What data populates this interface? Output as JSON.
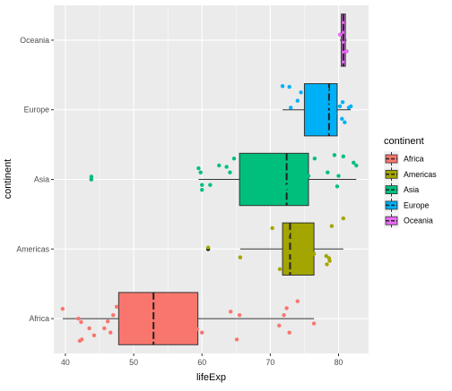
{
  "chart_data": {
    "type": "boxplot",
    "title": "",
    "xlabel": "lifeExp",
    "ylabel": "continent",
    "xlim": [
      38.3,
      84.4
    ],
    "xticks": [
      40,
      50,
      60,
      70,
      80
    ],
    "categories": [
      "Africa",
      "Americas",
      "Asia",
      "Europe",
      "Oceania"
    ],
    "grid": true,
    "legend": {
      "title": "continent",
      "position": "right",
      "entries": [
        "Africa",
        "Americas",
        "Asia",
        "Europe",
        "Oceania"
      ]
    },
    "colors": {
      "Africa": "#F8766D",
      "Americas": "#A3A500",
      "Asia": "#00BF7D",
      "Europe": "#00B0F6",
      "Oceania": "#E76BF3",
      "panel": "#EBEBEB",
      "grid": "#FFFFFF",
      "outlier": "#000000"
    },
    "series": [
      {
        "name": "Africa",
        "box": {
          "whisker_low": 39.6,
          "q1": 47.8,
          "median": 52.9,
          "q3": 59.4,
          "whisker_high": 76.4
        },
        "outliers": [],
        "points": [
          [
            39.6,
            0.14
          ],
          [
            41.9,
            0.0
          ],
          [
            42.3,
            -0.05
          ],
          [
            42.4,
            -0.3
          ],
          [
            42.1,
            -0.32
          ],
          [
            43.5,
            -0.14
          ],
          [
            44.2,
            -0.24
          ],
          [
            46.2,
            -0.04
          ],
          [
            45.7,
            -0.14
          ],
          [
            46.6,
            -0.2
          ],
          [
            47.0,
            0.05
          ],
          [
            47.5,
            0.17
          ],
          [
            48.2,
            0.28
          ],
          [
            49.5,
            0.13
          ],
          [
            50.8,
            -0.33
          ],
          [
            52.3,
            0.22
          ],
          [
            54.1,
            -0.27
          ],
          [
            56.0,
            0.05
          ],
          [
            58.4,
            0.1
          ],
          [
            59.3,
            -0.15
          ],
          [
            60.0,
            -0.2
          ],
          [
            64.2,
            0.1
          ],
          [
            65.1,
            -0.3
          ],
          [
            65.5,
            0.05
          ],
          [
            71.3,
            -0.1
          ],
          [
            72.0,
            0.05
          ],
          [
            72.4,
            0.15
          ],
          [
            72.8,
            -0.2
          ],
          [
            74.0,
            0.25
          ],
          [
            76.4,
            -0.07
          ]
        ]
      },
      {
        "name": "Americas",
        "box": {
          "whisker_low": 65.6,
          "q1": 71.8,
          "median": 72.9,
          "q3": 76.4,
          "whisker_high": 80.7
        },
        "outliers": [
          60.9
        ],
        "points": [
          [
            60.9,
            0.02
          ],
          [
            65.6,
            -0.12
          ],
          [
            70.3,
            0.3
          ],
          [
            71.4,
            -0.29
          ],
          [
            72.4,
            -0.26
          ],
          [
            72.6,
            0.22
          ],
          [
            72.9,
            0.12
          ],
          [
            73.0,
            -0.05
          ],
          [
            73.3,
            0.28
          ],
          [
            73.7,
            -0.16
          ],
          [
            75.3,
            0.17
          ],
          [
            75.5,
            -0.28
          ],
          [
            75.6,
            0.11
          ],
          [
            76.4,
            -0.07
          ],
          [
            78.2,
            -0.1
          ],
          [
            78.3,
            -0.22
          ],
          [
            78.6,
            -0.13
          ],
          [
            78.7,
            -0.17
          ],
          [
            79.0,
            0.33
          ],
          [
            80.7,
            0.44
          ]
        ]
      },
      {
        "name": "Asia",
        "box": {
          "whisker_low": 59.5,
          "q1": 65.5,
          "median": 72.4,
          "q3": 75.6,
          "whisker_high": 82.6
        },
        "outliers": [
          43.8
        ],
        "points": [
          [
            43.8,
            0.04
          ],
          [
            43.8,
            0.0
          ],
          [
            59.5,
            0.16
          ],
          [
            59.8,
            0.1
          ],
          [
            60.0,
            -0.15
          ],
          [
            60.0,
            -0.08
          ],
          [
            61.2,
            -0.08
          ],
          [
            62.5,
            0.2
          ],
          [
            63.6,
            0.18
          ],
          [
            64.1,
            0.1
          ],
          [
            64.7,
            0.3
          ],
          [
            70.6,
            0.12
          ],
          [
            71.0,
            0.3
          ],
          [
            72.3,
            -0.12
          ],
          [
            72.5,
            -0.1
          ],
          [
            72.8,
            0.2
          ],
          [
            73.0,
            -0.27
          ],
          [
            74.2,
            -0.17
          ],
          [
            74.2,
            0.05
          ],
          [
            75.6,
            0.05
          ],
          [
            76.5,
            0.3
          ],
          [
            78.4,
            0.1
          ],
          [
            79.4,
            0.35
          ],
          [
            79.8,
            -0.1
          ],
          [
            80.0,
            0.05
          ],
          [
            80.7,
            0.33
          ],
          [
            82.2,
            0.24
          ],
          [
            82.6,
            0.2
          ]
        ]
      },
      {
        "name": "Europe",
        "box": {
          "whisker_low": 71.8,
          "q1": 75.0,
          "median": 78.6,
          "q3": 79.8,
          "whisker_high": 81.8
        },
        "outliers": [],
        "points": [
          [
            71.8,
            0.34
          ],
          [
            72.8,
            0.33
          ],
          [
            73.0,
            0.03
          ],
          [
            74.0,
            0.13
          ],
          [
            74.5,
            0.25
          ],
          [
            75.6,
            0.3
          ],
          [
            76.4,
            0.07
          ],
          [
            76.5,
            0.12
          ],
          [
            77.0,
            -0.16
          ],
          [
            77.8,
            0.3
          ],
          [
            78.3,
            0.3
          ],
          [
            78.7,
            0.05
          ],
          [
            78.8,
            -0.32
          ],
          [
            79.0,
            0.16
          ],
          [
            79.4,
            -0.23
          ],
          [
            79.5,
            -0.05
          ],
          [
            80.2,
            0.05
          ],
          [
            80.5,
            -0.13
          ],
          [
            80.6,
            0.11
          ],
          [
            80.9,
            -0.18
          ],
          [
            81.5,
            0.03
          ],
          [
            81.8,
            0.05
          ]
        ]
      },
      {
        "name": "Oceania",
        "box": {
          "whisker_low": 80.2,
          "q1": 80.4,
          "median": 80.7,
          "q3": 81.0,
          "whisker_high": 81.2
        },
        "outliers": [],
        "points": [
          [
            80.2,
            0.08
          ],
          [
            81.2,
            -0.16
          ]
        ]
      }
    ]
  }
}
